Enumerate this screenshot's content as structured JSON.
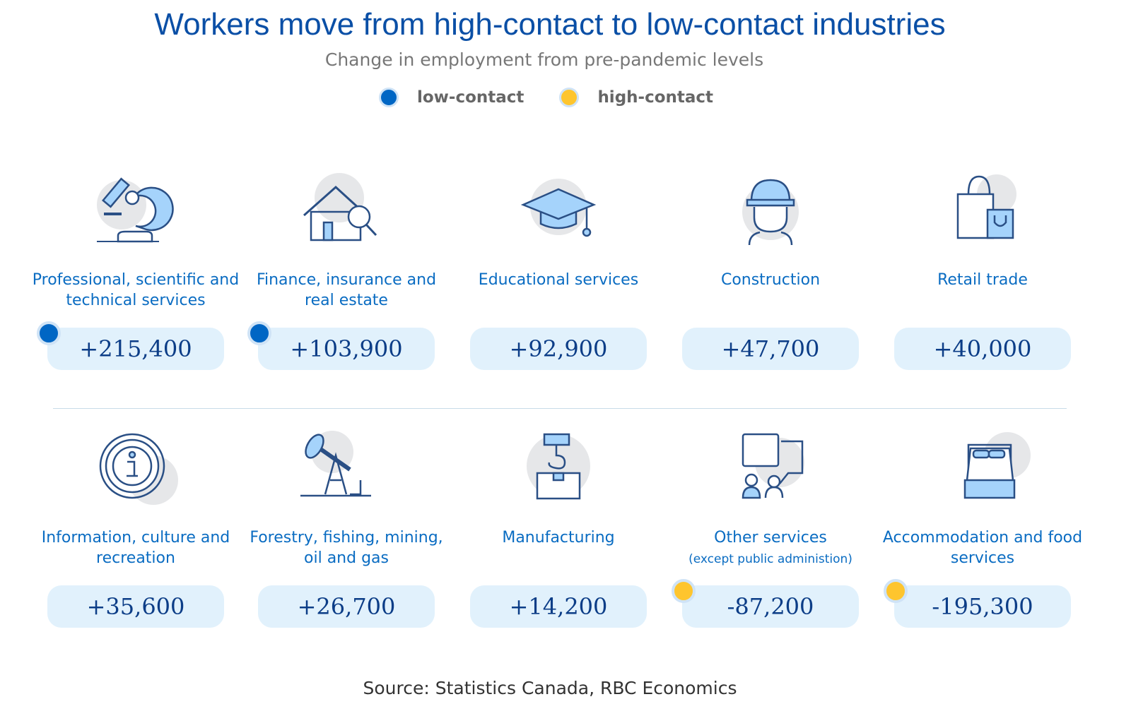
{
  "title": "Workers move from high-contact to low-contact industries",
  "subtitle": "Change in employment from pre-pandemic levels",
  "legend": [
    {
      "label": "low-contact",
      "color": "#0066c4"
    },
    {
      "label": "high-contact",
      "color": "#fec52e"
    }
  ],
  "industries": [
    {
      "label": "Professional, scientific and technical services",
      "value": "+215,400",
      "icon": "microscope-icon",
      "marker": "low-contact"
    },
    {
      "label": "Finance, insurance and real estate",
      "value": "+103,900",
      "icon": "house-magnifier-icon",
      "marker": "low-contact"
    },
    {
      "label": "Educational services",
      "value": "+92,900",
      "icon": "graduation-cap-icon",
      "marker": null
    },
    {
      "label": "Construction",
      "value": "+47,700",
      "icon": "hard-hat-worker-icon",
      "marker": null
    },
    {
      "label": "Retail trade",
      "value": "+40,000",
      "icon": "shopping-bag-icon",
      "marker": null
    },
    {
      "label": "Information, culture and recreation",
      "value": "+35,600",
      "icon": "info-icon",
      "marker": null
    },
    {
      "label": "Forestry, fishing, mining, oil and gas",
      "value": "+26,700",
      "icon": "oil-pump-icon",
      "marker": null
    },
    {
      "label": "Manufacturing",
      "value": "+14,200",
      "icon": "crane-hook-box-icon",
      "marker": null
    },
    {
      "label": "Other services",
      "note": "(except public administion)",
      "value": "-87,200",
      "icon": "chat-people-icon",
      "marker": "high-contact"
    },
    {
      "label": "Accommodation and food services",
      "value": "-195,300",
      "icon": "bed-icon",
      "marker": "high-contact"
    }
  ],
  "source": "Source: Statistics Canada, RBC Economics"
}
